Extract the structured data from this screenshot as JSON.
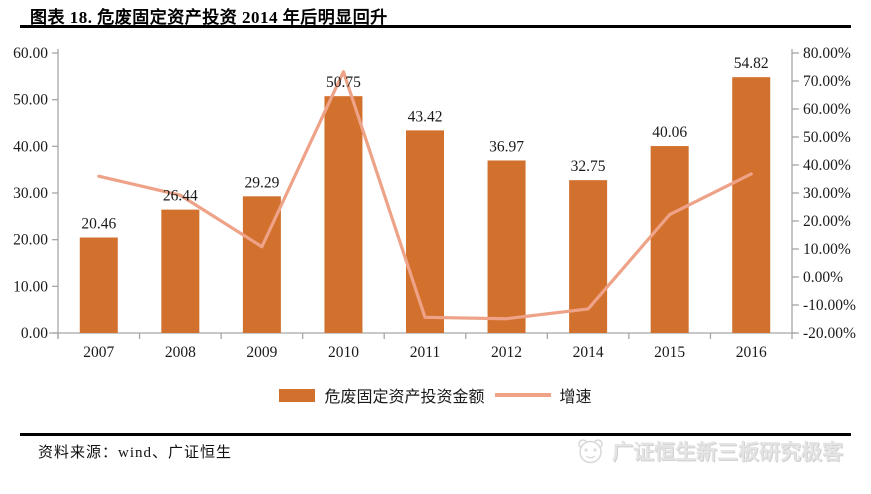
{
  "title": "图表 18. 危废固定资产投资 2014 年后明显回升",
  "colors": {
    "bar": "#D2712D",
    "line": "#EEA287",
    "axis": "#A6A6A6",
    "text": "#1a1a1a",
    "rule": "#000000",
    "watermark": "#E4E4E4"
  },
  "legend": {
    "bar_label": "危废固定资产投资金额",
    "line_label": "增速"
  },
  "footer": {
    "source_note": "资料来源：wind、广证恒生",
    "watermark_text": "广证恒生新三板研究极客"
  },
  "chart_data": {
    "type": "bar",
    "subtype": "bar+line combo, dual axis",
    "categories": [
      "2007",
      "2008",
      "2009",
      "2010",
      "2011",
      "2012",
      "2014",
      "2015",
      "2016"
    ],
    "series": [
      {
        "name": "危废固定资产投资金额",
        "type": "bar",
        "axis": "left",
        "values": [
          20.46,
          26.44,
          29.29,
          50.75,
          43.42,
          36.97,
          32.75,
          40.06,
          54.82
        ],
        "data_labels": [
          "20.46",
          "26.44",
          "29.29",
          "50.75",
          "43.42",
          "36.97",
          "32.75",
          "40.06",
          "54.82"
        ]
      },
      {
        "name": "增速",
        "type": "line",
        "axis": "right",
        "values_percent_estimated": [
          36.0,
          29.2,
          10.8,
          73.3,
          -14.4,
          -14.9,
          -11.4,
          22.3,
          36.8
        ]
      }
    ],
    "left_axis": {
      "min": 0,
      "max": 60,
      "step": 10,
      "tick_labels": [
        "0.00",
        "10.00",
        "20.00",
        "30.00",
        "40.00",
        "50.00",
        "60.00"
      ]
    },
    "right_axis": {
      "min": -20,
      "max": 80,
      "step": 10,
      "tick_labels": [
        "-20.00%",
        "-10.00%",
        "0.00%",
        "10.00%",
        "20.00%",
        "30.00%",
        "40.00%",
        "50.00%",
        "60.00%",
        "70.00%",
        "80.00%"
      ]
    },
    "grid": false,
    "legend_position": "bottom"
  }
}
